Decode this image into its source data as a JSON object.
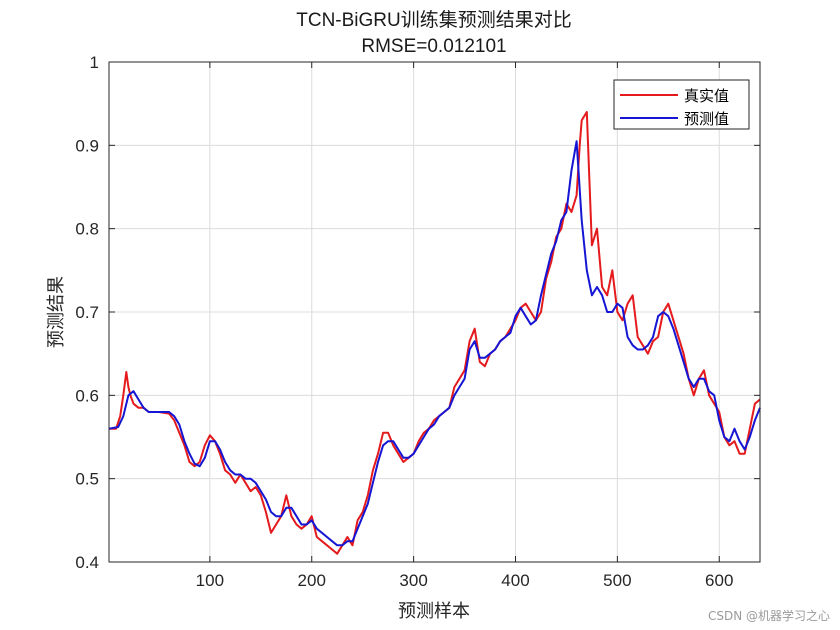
{
  "chart_data": {
    "type": "line",
    "title": "TCN-BiGRU训练集预测结果对比",
    "subtitle": "RMSE=0.012101",
    "xlabel": "预测样本",
    "ylabel": "预测结果",
    "xlim": [
      1,
      640
    ],
    "ylim": [
      0.4,
      1.0
    ],
    "xticks": [
      100,
      200,
      300,
      400,
      500,
      600
    ],
    "yticks": [
      0.4,
      0.5,
      0.6,
      0.7,
      0.8,
      0.9,
      1.0
    ],
    "ytick_labels": [
      "0.4",
      "0.5",
      "0.6",
      "0.7",
      "0.8",
      "0.9",
      "1"
    ],
    "grid": true,
    "legend_position": "top-right",
    "series": [
      {
        "name": "真实值",
        "color": "#e41a1c",
        "x": [
          1,
          8,
          12,
          15,
          18,
          20,
          22,
          25,
          30,
          35,
          40,
          50,
          60,
          65,
          70,
          75,
          80,
          85,
          90,
          95,
          100,
          105,
          110,
          115,
          120,
          125,
          130,
          135,
          140,
          145,
          150,
          155,
          160,
          165,
          170,
          175,
          180,
          185,
          190,
          195,
          200,
          205,
          210,
          215,
          220,
          225,
          230,
          235,
          240,
          245,
          250,
          255,
          260,
          265,
          270,
          275,
          280,
          285,
          290,
          295,
          300,
          305,
          310,
          315,
          320,
          325,
          330,
          335,
          340,
          345,
          350,
          355,
          360,
          365,
          370,
          375,
          380,
          385,
          390,
          395,
          400,
          405,
          410,
          415,
          420,
          425,
          430,
          435,
          440,
          445,
          450,
          455,
          460,
          463,
          465,
          470,
          475,
          480,
          485,
          490,
          495,
          500,
          505,
          510,
          515,
          520,
          525,
          530,
          535,
          540,
          545,
          550,
          555,
          560,
          565,
          570,
          575,
          580,
          585,
          590,
          595,
          600,
          605,
          610,
          615,
          620,
          625,
          630,
          635,
          640
        ],
        "values": [
          0.56,
          0.56,
          0.575,
          0.6,
          0.628,
          0.61,
          0.6,
          0.59,
          0.585,
          0.585,
          0.58,
          0.58,
          0.578,
          0.57,
          0.555,
          0.54,
          0.52,
          0.515,
          0.52,
          0.54,
          0.552,
          0.545,
          0.53,
          0.51,
          0.505,
          0.495,
          0.505,
          0.495,
          0.485,
          0.49,
          0.48,
          0.46,
          0.435,
          0.445,
          0.455,
          0.48,
          0.455,
          0.445,
          0.44,
          0.445,
          0.455,
          0.43,
          0.425,
          0.42,
          0.415,
          0.41,
          0.42,
          0.43,
          0.42,
          0.45,
          0.46,
          0.48,
          0.51,
          0.53,
          0.555,
          0.555,
          0.54,
          0.53,
          0.52,
          0.525,
          0.53,
          0.545,
          0.555,
          0.56,
          0.57,
          0.575,
          0.58,
          0.585,
          0.61,
          0.62,
          0.63,
          0.665,
          0.68,
          0.64,
          0.635,
          0.65,
          0.655,
          0.665,
          0.67,
          0.68,
          0.69,
          0.705,
          0.71,
          0.7,
          0.69,
          0.7,
          0.74,
          0.76,
          0.79,
          0.8,
          0.83,
          0.82,
          0.84,
          0.9,
          0.93,
          0.94,
          0.78,
          0.8,
          0.73,
          0.72,
          0.75,
          0.7,
          0.69,
          0.71,
          0.72,
          0.67,
          0.66,
          0.65,
          0.665,
          0.67,
          0.7,
          0.71,
          0.69,
          0.67,
          0.65,
          0.62,
          0.6,
          0.62,
          0.63,
          0.6,
          0.59,
          0.58,
          0.55,
          0.54,
          0.545,
          0.53,
          0.53,
          0.56,
          0.59,
          0.595
        ]
      },
      {
        "name": "预测值",
        "color": "#1515d4",
        "x": [
          1,
          10,
          15,
          20,
          25,
          30,
          35,
          40,
          50,
          60,
          65,
          70,
          75,
          80,
          85,
          90,
          95,
          100,
          105,
          110,
          115,
          120,
          125,
          130,
          135,
          140,
          145,
          150,
          155,
          160,
          165,
          170,
          175,
          180,
          185,
          190,
          195,
          200,
          205,
          210,
          215,
          220,
          225,
          230,
          235,
          240,
          245,
          250,
          255,
          260,
          265,
          270,
          275,
          280,
          285,
          290,
          295,
          300,
          305,
          310,
          315,
          320,
          325,
          330,
          335,
          340,
          345,
          350,
          355,
          360,
          365,
          370,
          375,
          380,
          385,
          390,
          395,
          400,
          405,
          410,
          415,
          420,
          425,
          430,
          435,
          440,
          445,
          450,
          455,
          460,
          465,
          470,
          475,
          480,
          485,
          490,
          495,
          500,
          505,
          510,
          515,
          520,
          525,
          530,
          535,
          540,
          545,
          550,
          555,
          560,
          565,
          570,
          575,
          580,
          585,
          590,
          595,
          600,
          605,
          610,
          615,
          620,
          625,
          630,
          635,
          640
        ],
        "values": [
          0.56,
          0.562,
          0.575,
          0.6,
          0.605,
          0.595,
          0.585,
          0.58,
          0.58,
          0.58,
          0.575,
          0.565,
          0.545,
          0.53,
          0.518,
          0.515,
          0.525,
          0.545,
          0.545,
          0.535,
          0.52,
          0.51,
          0.505,
          0.505,
          0.5,
          0.5,
          0.495,
          0.485,
          0.475,
          0.46,
          0.455,
          0.455,
          0.465,
          0.465,
          0.455,
          0.445,
          0.445,
          0.45,
          0.44,
          0.435,
          0.43,
          0.425,
          0.42,
          0.42,
          0.425,
          0.425,
          0.44,
          0.455,
          0.47,
          0.495,
          0.52,
          0.54,
          0.545,
          0.545,
          0.535,
          0.525,
          0.525,
          0.53,
          0.54,
          0.55,
          0.56,
          0.565,
          0.575,
          0.58,
          0.585,
          0.6,
          0.61,
          0.62,
          0.655,
          0.665,
          0.645,
          0.645,
          0.65,
          0.655,
          0.665,
          0.67,
          0.675,
          0.695,
          0.705,
          0.695,
          0.685,
          0.69,
          0.72,
          0.745,
          0.77,
          0.785,
          0.81,
          0.82,
          0.87,
          0.905,
          0.81,
          0.75,
          0.72,
          0.73,
          0.72,
          0.7,
          0.7,
          0.71,
          0.705,
          0.67,
          0.66,
          0.655,
          0.655,
          0.66,
          0.67,
          0.695,
          0.7,
          0.695,
          0.68,
          0.66,
          0.64,
          0.62,
          0.61,
          0.62,
          0.62,
          0.605,
          0.6,
          0.57,
          0.55,
          0.545,
          0.56,
          0.545,
          0.535,
          0.55,
          0.57,
          0.585
        ]
      }
    ]
  },
  "watermark": "CSDN @机器学习之心"
}
